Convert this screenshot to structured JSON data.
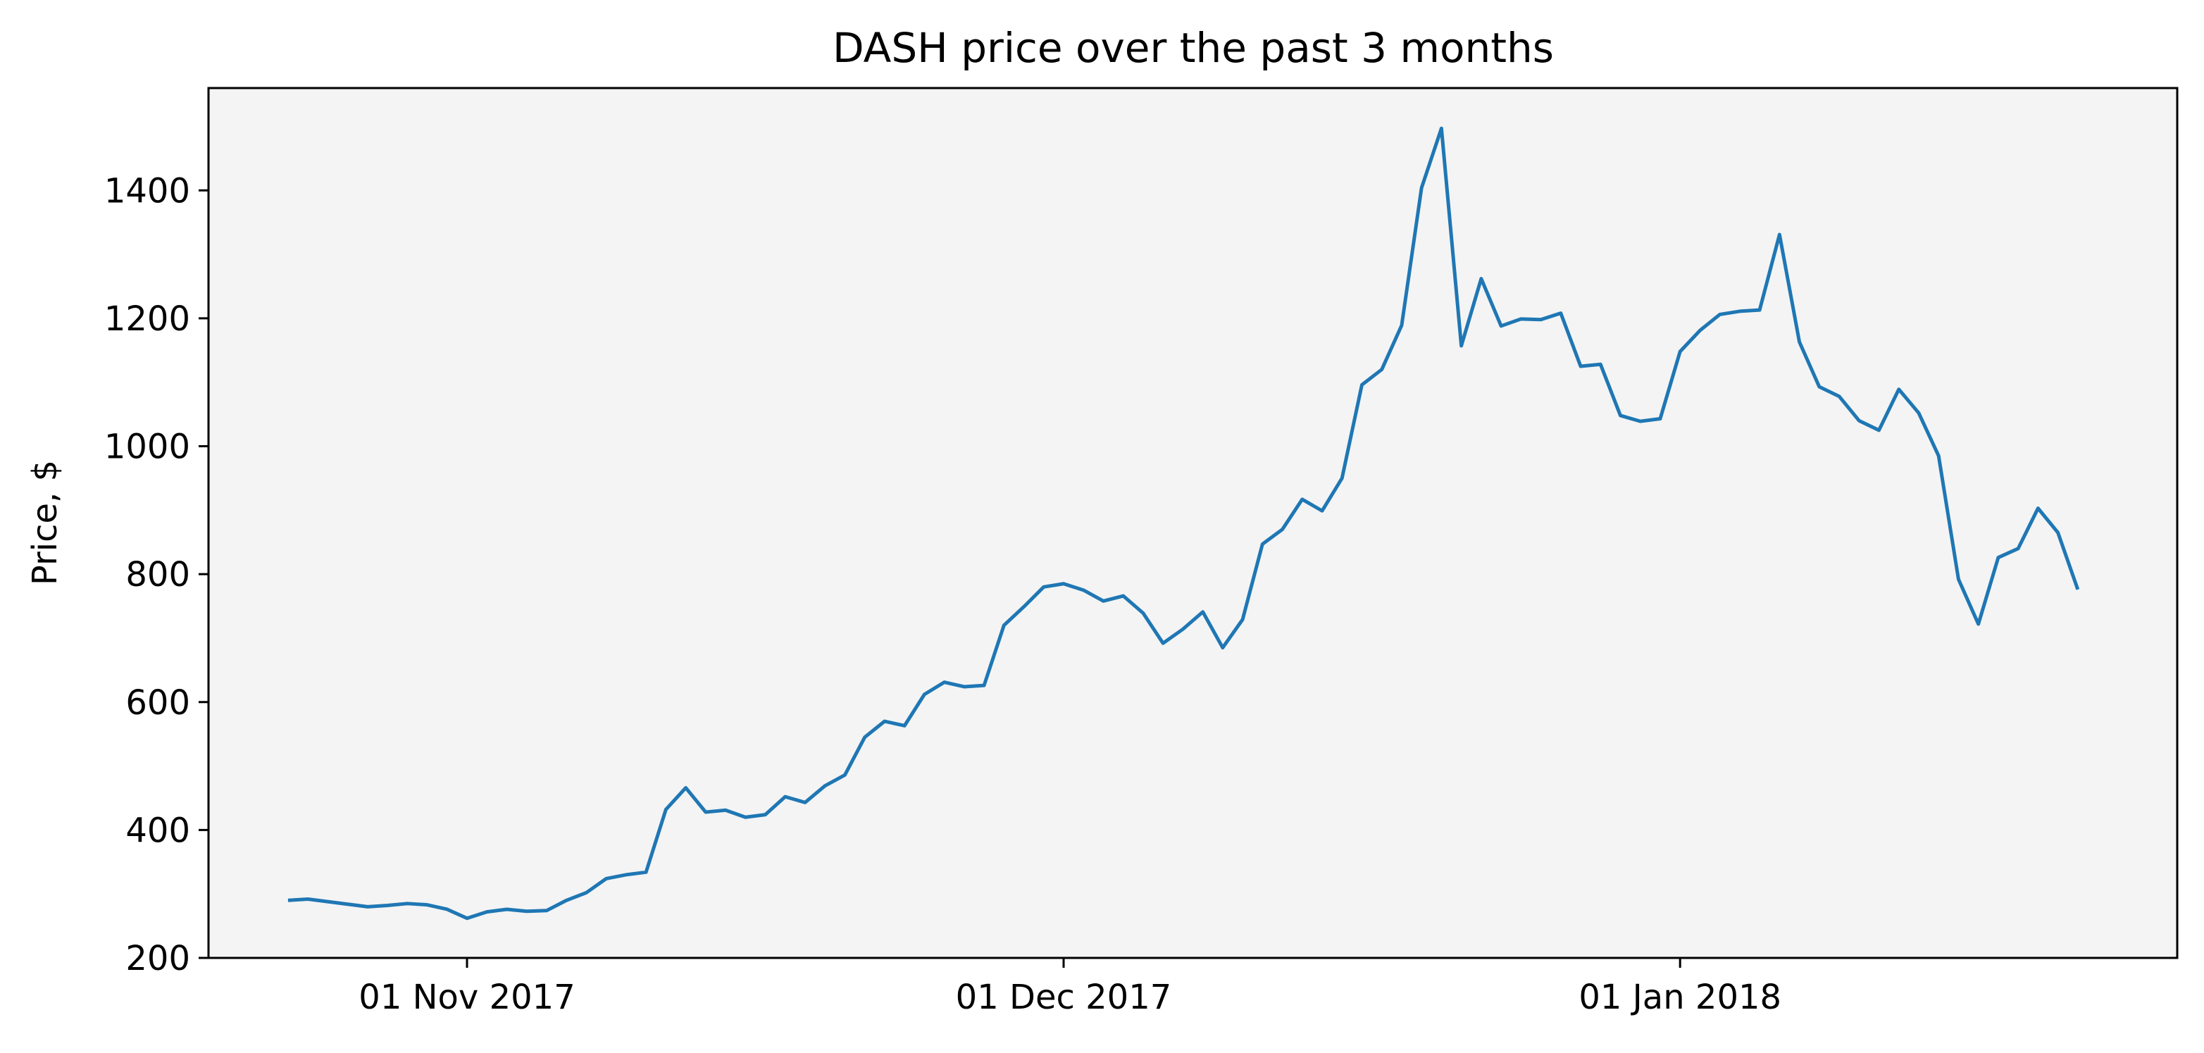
{
  "chart_data": {
    "type": "line",
    "title": "DASH price over the past 3 months",
    "xlabel": "",
    "ylabel": "Price, $",
    "ylim": [
      200,
      1560
    ],
    "xlim": [
      "2017-10-19",
      "2018-01-26"
    ],
    "yticks": [
      200,
      400,
      600,
      800,
      1000,
      1200,
      1400
    ],
    "xticks": [
      {
        "date": "2017-11-01",
        "label": "01 Nov 2017"
      },
      {
        "date": "2017-12-01",
        "label": "01 Dec 2017"
      },
      {
        "date": "2018-01-01",
        "label": "01 Jan 2018"
      }
    ],
    "grid": false,
    "background_color": "#f4f4f4",
    "line_color": "#1f77b4",
    "series": [
      {
        "x": [
          "2017-10-23",
          "2017-10-24",
          "2017-10-25",
          "2017-10-26",
          "2017-10-27",
          "2017-10-28",
          "2017-10-29",
          "2017-10-30",
          "2017-10-31",
          "2017-11-01",
          "2017-11-02",
          "2017-11-03",
          "2017-11-04",
          "2017-11-05",
          "2017-11-06",
          "2017-11-07",
          "2017-11-08",
          "2017-11-09",
          "2017-11-10",
          "2017-11-11",
          "2017-11-12",
          "2017-11-13",
          "2017-11-14",
          "2017-11-15",
          "2017-11-16",
          "2017-11-17",
          "2017-11-18",
          "2017-11-19",
          "2017-11-20",
          "2017-11-21",
          "2017-11-22",
          "2017-11-23",
          "2017-11-24",
          "2017-11-25",
          "2017-11-26",
          "2017-11-27",
          "2017-11-28",
          "2017-11-29",
          "2017-11-30",
          "2017-12-01",
          "2017-12-02",
          "2017-12-03",
          "2017-12-04",
          "2017-12-05",
          "2017-12-06",
          "2017-12-07",
          "2017-12-08",
          "2017-12-09",
          "2017-12-10",
          "2017-12-11",
          "2017-12-12",
          "2017-12-13",
          "2017-12-14",
          "2017-12-15",
          "2017-12-16",
          "2017-12-17",
          "2017-12-18",
          "2017-12-19",
          "2017-12-20",
          "2017-12-21",
          "2017-12-22",
          "2017-12-23",
          "2017-12-24",
          "2017-12-25",
          "2017-12-26",
          "2017-12-27",
          "2017-12-28",
          "2017-12-29",
          "2017-12-30",
          "2017-12-31",
          "2018-01-01",
          "2018-01-02",
          "2018-01-03",
          "2018-01-04",
          "2018-01-05",
          "2018-01-06",
          "2018-01-07",
          "2018-01-08",
          "2018-01-09",
          "2018-01-10",
          "2018-01-11",
          "2018-01-12",
          "2018-01-13",
          "2018-01-14",
          "2018-01-15",
          "2018-01-16",
          "2018-01-17",
          "2018-01-18",
          "2018-01-19",
          "2018-01-20",
          "2018-01-21"
        ],
        "y": [
          290,
          292,
          288,
          284,
          280,
          282,
          285,
          283,
          276,
          262,
          272,
          276,
          273,
          274,
          290,
          302,
          324,
          330,
          334,
          432,
          466,
          428,
          431,
          420,
          424,
          452,
          443,
          469,
          486,
          545,
          570,
          563,
          612,
          631,
          624,
          626,
          720,
          749,
          780,
          785,
          775,
          758,
          766,
          739,
          692,
          714,
          741,
          685,
          729,
          847,
          870,
          917,
          899,
          950,
          1096,
          1120,
          1189,
          1404,
          1497,
          1157,
          1262,
          1188,
          1199,
          1198,
          1208,
          1125,
          1128,
          1048,
          1039,
          1043,
          1148,
          1181,
          1206,
          1211,
          1213,
          1331,
          1163,
          1093,
          1078,
          1040,
          1025,
          1089,
          1052,
          985,
          792,
          722,
          826,
          840,
          903,
          865,
          776
        ]
      }
    ]
  }
}
